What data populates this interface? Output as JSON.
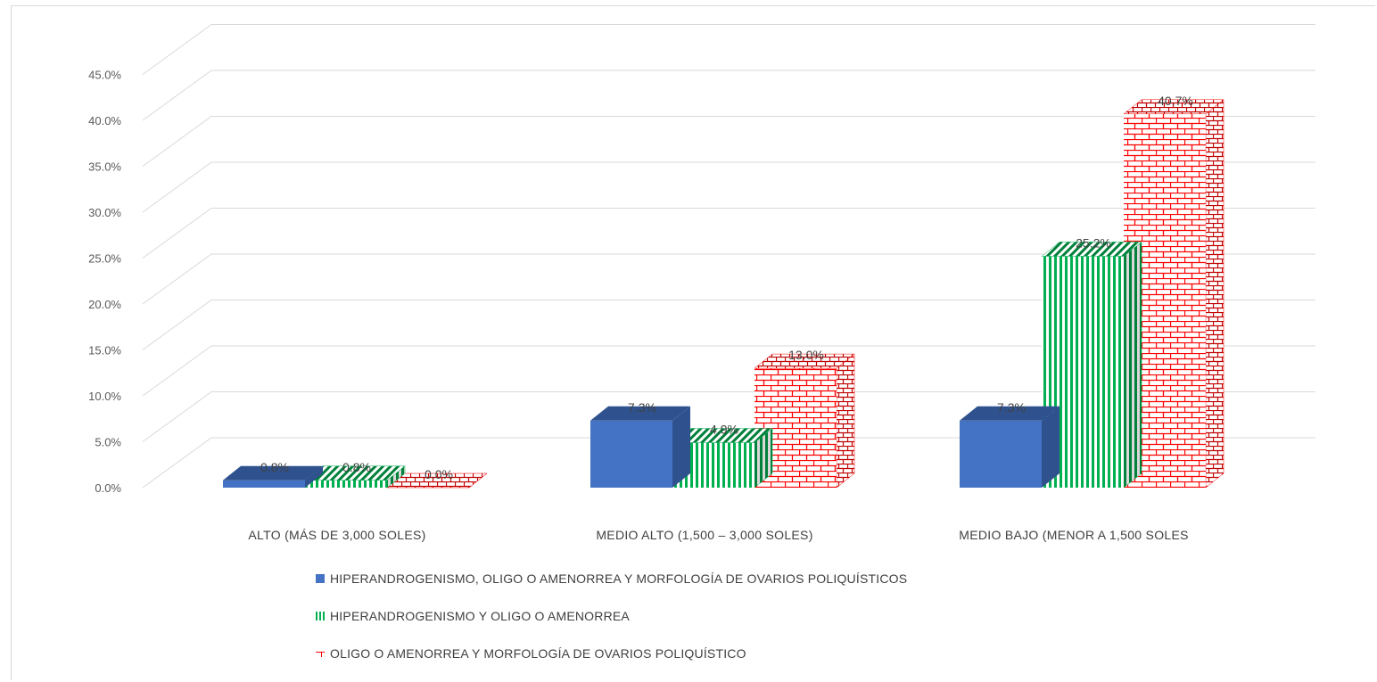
{
  "chart_data": {
    "type": "bar",
    "style": "3d-clustered-column",
    "title": "",
    "xlabel": "",
    "ylabel": "",
    "ylim": [
      0,
      45
    ],
    "y_ticks": [
      "0.0%",
      "5.0%",
      "10.0%",
      "15.0%",
      "20.0%",
      "25.0%",
      "30.0%",
      "35.0%",
      "40.0%",
      "45.0%"
    ],
    "categories": [
      "ALTO (MÁS DE 3,000 SOLES)",
      "MEDIO ALTO (1,500 – 3,000 SOLES)",
      "MEDIO BAJO (MENOR A 1,500 SOLES"
    ],
    "series": [
      {
        "name": "HIPERANDROGENISMO, OLIGO O AMENORREA Y MORFOLOGÍA DE OVARIOS POLIQUÍSTICOS",
        "values": [
          0.8,
          7.3,
          7.3
        ],
        "labels": [
          "0.8%",
          "7.3%",
          "7.3%"
        ],
        "color": "#4472c4",
        "pattern": "solid"
      },
      {
        "name": "HIPERANDROGENISMO Y OLIGO O AMENORREA",
        "values": [
          0.8,
          4.9,
          25.2
        ],
        "labels": [
          "0.8%",
          "4.9%",
          "25.2%"
        ],
        "color": "#00b050",
        "pattern": "vertical-stripes"
      },
      {
        "name": "OLIGO O AMENORREA Y MORFOLOGÍA DE OVARIOS POLIQUÍSTICO",
        "values": [
          0.0,
          13.0,
          40.7
        ],
        "labels": [
          "0.0%",
          "13.0%",
          "40.7%"
        ],
        "color": "#ff0000",
        "pattern": "brick"
      }
    ],
    "grid": true,
    "legend_position": "bottom"
  }
}
